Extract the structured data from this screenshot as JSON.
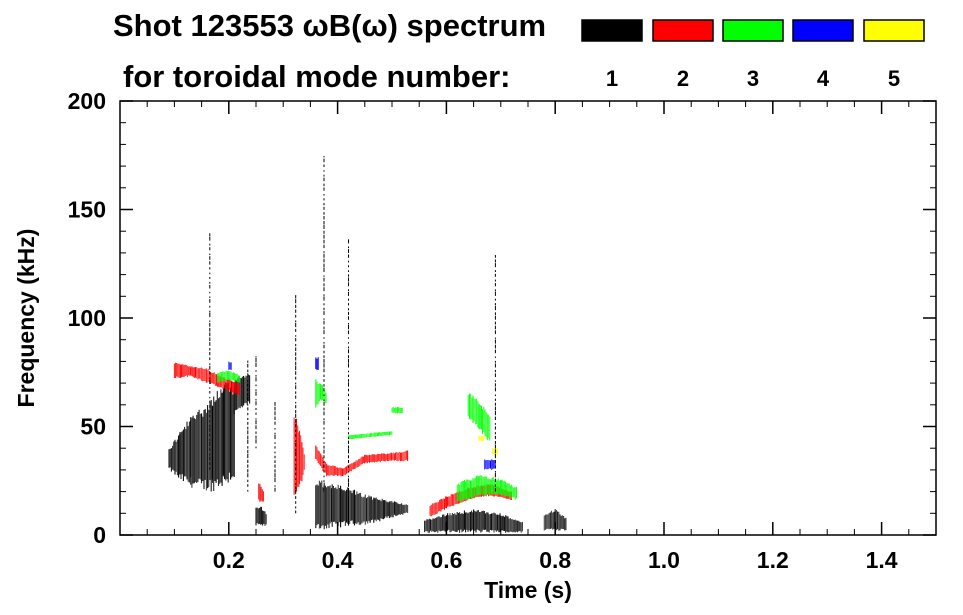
{
  "chart_data": {
    "type": "heatmap",
    "title": "Shot 123553 ωB(ω) spectrum",
    "subtitle": "for toroidal mode number:",
    "xlabel": "Time (s)",
    "ylabel": "Frequency (kHz)",
    "xlim": [
      0.0,
      1.5
    ],
    "ylim": [
      0,
      200
    ],
    "x_ticks": [
      0.2,
      0.4,
      0.6,
      0.8,
      1.0,
      1.2,
      1.4
    ],
    "x_tick_labels": [
      "0.2",
      "0.4",
      "0.6",
      "0.8",
      "1.0",
      "1.2",
      "1.4"
    ],
    "y_ticks": [
      0,
      50,
      100,
      150,
      200
    ],
    "y_tick_labels": [
      "0",
      "50",
      "100",
      "150",
      "200"
    ],
    "grid": false,
    "legend_placement": "top-right",
    "series": [
      {
        "name": "1",
        "color": "#000000"
      },
      {
        "name": "2",
        "color": "#ff0000"
      },
      {
        "name": "3",
        "color": "#00ff00"
      },
      {
        "name": "4",
        "color": "#0000ff"
      },
      {
        "name": "5",
        "color": "#ffff00"
      }
    ],
    "regions": [
      {
        "mode": 1,
        "type": "band",
        "t": [
          0.09,
          0.11,
          0.13,
          0.15,
          0.17,
          0.19,
          0.21
        ],
        "f_low": [
          30,
          25,
          22,
          20,
          20,
          22,
          25
        ],
        "f_high": [
          40,
          48,
          55,
          60,
          65,
          70,
          72
        ]
      },
      {
        "mode": 1,
        "type": "band",
        "t": [
          0.21,
          0.225,
          0.24
        ],
        "f_low": [
          55,
          58,
          60
        ],
        "f_high": [
          72,
          74,
          74
        ]
      },
      {
        "mode": 1,
        "type": "band",
        "t": [
          0.25,
          0.26,
          0.27
        ],
        "f_low": [
          4,
          4,
          4
        ],
        "f_high": [
          14,
          13,
          10
        ]
      },
      {
        "mode": 1,
        "type": "band",
        "t": [
          0.36,
          0.39,
          0.42,
          0.46,
          0.5,
          0.53
        ],
        "f_low": [
          2,
          3,
          4,
          5,
          8,
          10
        ],
        "f_high": [
          26,
          24,
          22,
          18,
          16,
          14
        ]
      },
      {
        "mode": 1,
        "type": "band",
        "t": [
          0.56,
          0.6,
          0.65,
          0.7,
          0.74
        ],
        "f_low": [
          1,
          1,
          1,
          1,
          1
        ],
        "f_high": [
          7,
          10,
          12,
          10,
          6
        ]
      },
      {
        "mode": 1,
        "type": "band",
        "t": [
          0.78,
          0.8,
          0.82
        ],
        "f_low": [
          2,
          2,
          2
        ],
        "f_high": [
          10,
          12,
          8
        ]
      },
      {
        "mode": 2,
        "type": "band",
        "t": [
          0.1,
          0.13,
          0.16,
          0.18,
          0.2,
          0.22
        ],
        "f_low": [
          72,
          73,
          70,
          68,
          66,
          64
        ],
        "f_high": [
          80,
          78,
          77,
          74,
          72,
          70
        ]
      },
      {
        "mode": 2,
        "type": "band",
        "t": [
          0.255,
          0.265
        ],
        "f_low": [
          15,
          15
        ],
        "f_high": [
          25,
          20
        ]
      },
      {
        "mode": 2,
        "type": "band",
        "t": [
          0.32,
          0.33,
          0.34
        ],
        "f_low": [
          18,
          20,
          30
        ],
        "f_high": [
          60,
          50,
          36
        ]
      },
      {
        "mode": 2,
        "type": "band",
        "t": [
          0.36,
          0.38,
          0.41,
          0.45,
          0.5,
          0.53
        ],
        "f_low": [
          34,
          27,
          27,
          33,
          34,
          34
        ],
        "f_high": [
          42,
          33,
          31,
          37,
          38,
          39
        ]
      },
      {
        "mode": 2,
        "type": "band",
        "t": [
          0.57,
          0.6,
          0.64,
          0.68,
          0.72
        ],
        "f_low": [
          8,
          12,
          16,
          18,
          16
        ],
        "f_high": [
          14,
          18,
          22,
          24,
          20
        ]
      },
      {
        "mode": 3,
        "type": "band",
        "t": [
          0.36,
          0.37,
          0.38
        ],
        "f_low": [
          58,
          62,
          60
        ],
        "f_high": [
          72,
          70,
          66
        ]
      },
      {
        "mode": 3,
        "type": "band",
        "t": [
          0.42,
          0.46,
          0.5
        ],
        "f_low": [
          44,
          45,
          46
        ],
        "f_high": [
          46,
          47,
          48
        ]
      },
      {
        "mode": 3,
        "type": "band",
        "t": [
          0.5,
          0.51,
          0.52
        ],
        "f_low": [
          56,
          56,
          56
        ],
        "f_high": [
          59,
          59,
          59
        ]
      },
      {
        "mode": 3,
        "type": "band",
        "t": [
          0.64,
          0.66,
          0.68
        ],
        "f_low": [
          54,
          48,
          42
        ],
        "f_high": [
          66,
          62,
          56
        ]
      },
      {
        "mode": 3,
        "type": "band",
        "t": [
          0.62,
          0.66,
          0.7,
          0.73
        ],
        "f_low": [
          14,
          18,
          18,
          16
        ],
        "f_high": [
          24,
          28,
          26,
          22
        ]
      },
      {
        "mode": 3,
        "type": "band",
        "t": [
          0.18,
          0.2,
          0.22
        ],
        "f_low": [
          70,
          71,
          70
        ],
        "f_high": [
          75,
          76,
          74
        ]
      },
      {
        "mode": 4,
        "type": "band",
        "t": [
          0.2,
          0.205
        ],
        "f_low": [
          76,
          76
        ],
        "f_high": [
          80,
          80
        ]
      },
      {
        "mode": 4,
        "type": "band",
        "t": [
          0.36,
          0.365
        ],
        "f_low": [
          76,
          76
        ],
        "f_high": [
          82,
          82
        ]
      },
      {
        "mode": 4,
        "type": "band",
        "t": [
          0.67,
          0.69
        ],
        "f_low": [
          30,
          30
        ],
        "f_high": [
          35,
          35
        ]
      },
      {
        "mode": 5,
        "type": "band",
        "t": [
          0.66,
          0.67
        ],
        "f_low": [
          43,
          43
        ],
        "f_high": [
          46,
          46
        ]
      },
      {
        "mode": 5,
        "type": "band",
        "t": [
          0.685,
          0.695
        ],
        "f_low": [
          37,
          37
        ],
        "f_high": [
          40,
          40
        ]
      }
    ],
    "lines": [
      {
        "mode": 1,
        "t": 0.375,
        "f": [
          20,
          176
        ]
      },
      {
        "mode": 1,
        "t": 0.323,
        "f": [
          10,
          110
        ]
      },
      {
        "mode": 1,
        "t": 0.42,
        "f": [
          20,
          135
        ]
      },
      {
        "mode": 1,
        "t": 0.69,
        "f": [
          20,
          130
        ]
      },
      {
        "mode": 1,
        "t": 0.165,
        "f": [
          30,
          140
        ]
      },
      {
        "mode": 1,
        "t": 0.285,
        "f": [
          20,
          60
        ]
      },
      {
        "mode": 1,
        "t": 0.235,
        "f": [
          20,
          80
        ]
      },
      {
        "mode": 1,
        "t": 0.25,
        "f": [
          40,
          82
        ]
      }
    ]
  }
}
